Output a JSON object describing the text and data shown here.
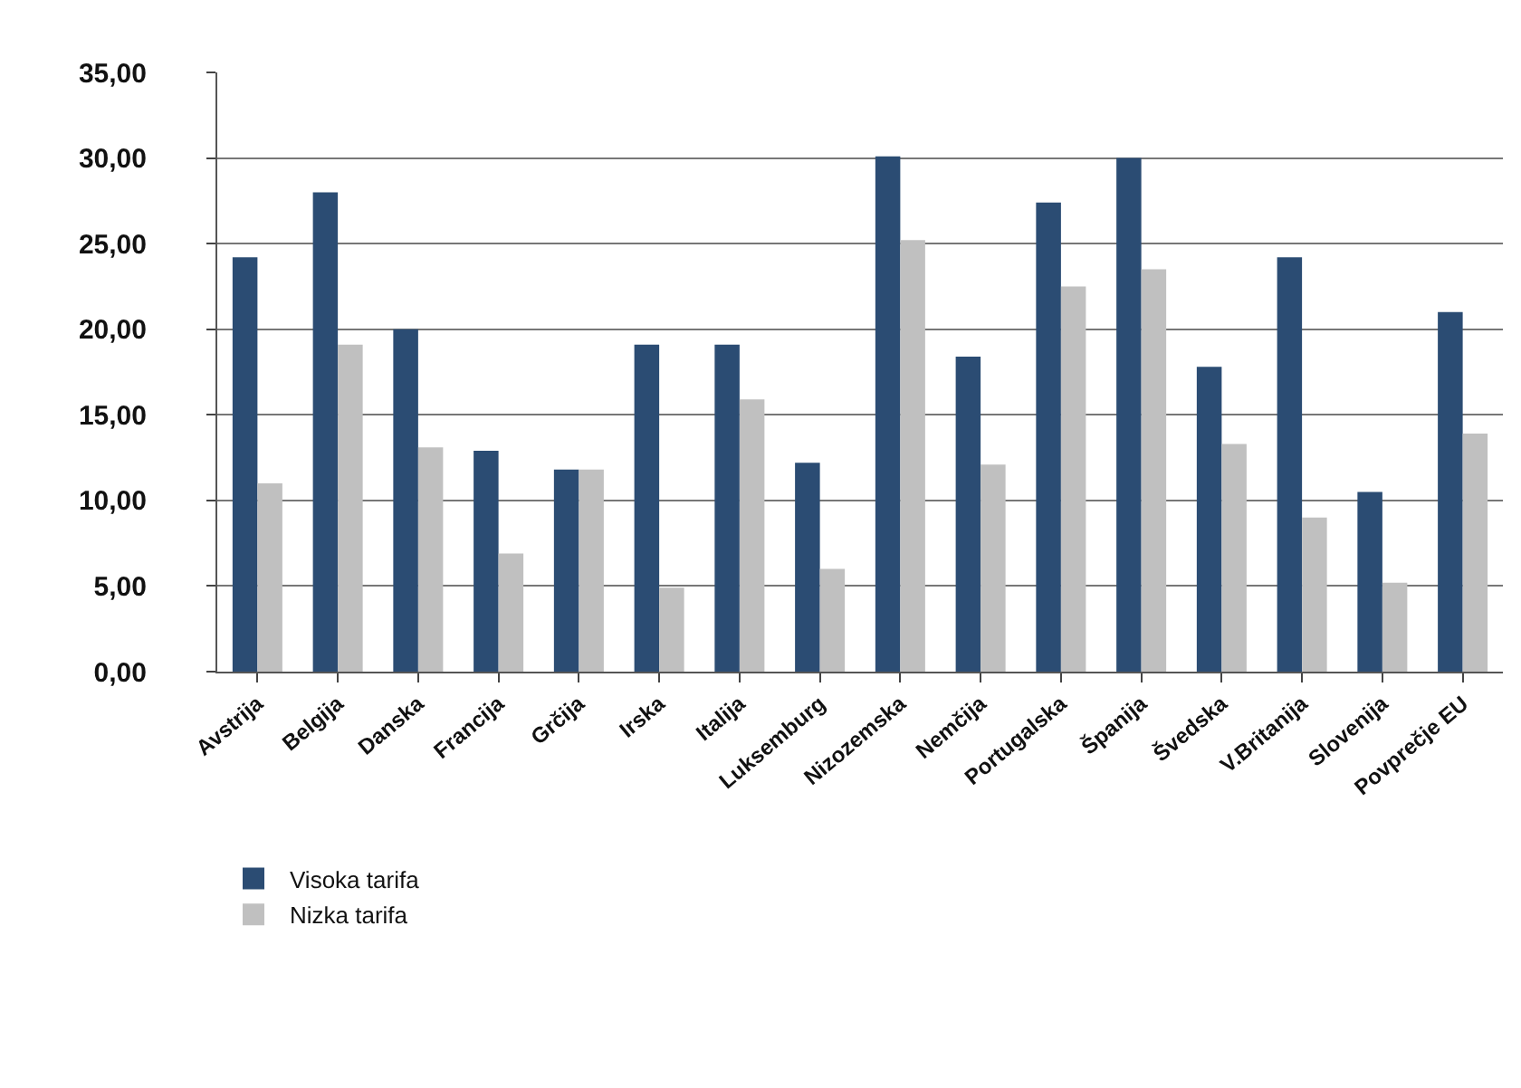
{
  "chart_data": {
    "type": "bar",
    "categories": [
      "Avstrija",
      "Belgija",
      "Danska",
      "Francija",
      "Grčija",
      "Irska",
      "Italija",
      "Luksemburg",
      "Nizozemska",
      "Nemčija",
      "Portugalska",
      "Španija",
      "Švedska",
      "V.Britanija",
      "Slovenija",
      "Povprečje EU"
    ],
    "series": [
      {
        "name": "Visoka tarifa",
        "color": "#2b4c73",
        "values": [
          24.2,
          28.0,
          20.0,
          12.9,
          11.8,
          19.1,
          19.1,
          12.2,
          30.1,
          18.4,
          27.4,
          30.0,
          17.8,
          24.2,
          10.5,
          21.0
        ]
      },
      {
        "name": "Nizka tarifa",
        "color": "#c0c0c0",
        "values": [
          11.0,
          19.1,
          13.1,
          6.9,
          11.8,
          4.9,
          15.9,
          6.0,
          25.2,
          12.1,
          22.5,
          23.5,
          13.3,
          9.0,
          5.2,
          13.9
        ]
      }
    ],
    "ylim": [
      0,
      35
    ],
    "yticks": [
      {
        "value": 0,
        "label": "0,00"
      },
      {
        "value": 5,
        "label": "5,00"
      },
      {
        "value": 10,
        "label": "10,00"
      },
      {
        "value": 15,
        "label": "15,00"
      },
      {
        "value": 20,
        "label": "20,00"
      },
      {
        "value": 25,
        "label": "25,00"
      },
      {
        "value": 30,
        "label": "30,00"
      },
      {
        "value": 35,
        "label": "35,00"
      }
    ],
    "grid": "y",
    "legend": "bottom left"
  }
}
